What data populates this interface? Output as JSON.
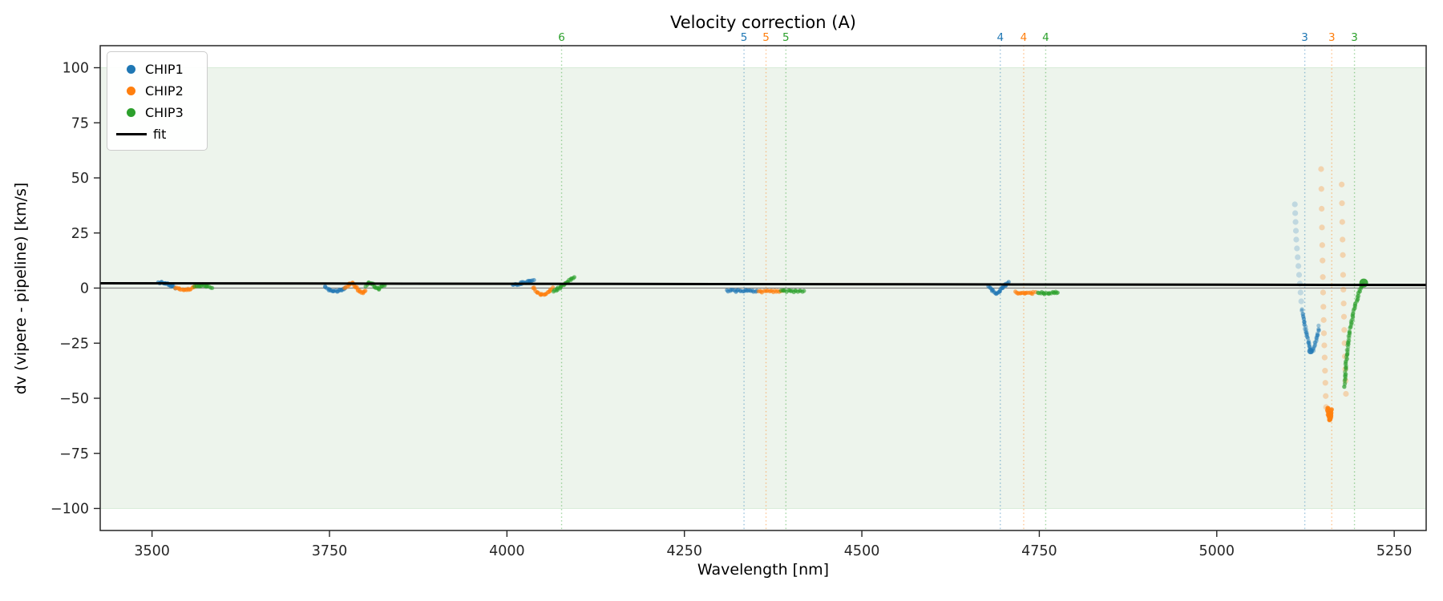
{
  "chart_data": {
    "type": "scatter",
    "title": "Velocity correction (A)",
    "xlabel": "Wavelength [nm]",
    "ylabel": "dv (vipere - pipeline) [km/s]",
    "xlim": [
      3427,
      5295
    ],
    "ylim": [
      -110,
      110
    ],
    "xticks": [
      3500,
      3750,
      4000,
      4250,
      4500,
      4750,
      5000,
      5250
    ],
    "yticks": [
      100,
      75,
      50,
      25,
      0,
      -25,
      -50,
      -75,
      -100
    ],
    "grid": false,
    "shaded_band": {
      "ymin": -100,
      "ymax": 100,
      "color": "#edf4ec",
      "edge_color": "#2ca02c"
    },
    "zero_line": {
      "y": 0,
      "color": "#848484"
    },
    "fit_line": {
      "label": "fit",
      "color": "#000000",
      "points": [
        [
          3427,
          2.2
        ],
        [
          5295,
          1.4
        ]
      ]
    },
    "order_markers": [
      {
        "order": "6",
        "chip": "CHIP3",
        "wavelength": 4077,
        "color": "#2ca02c"
      },
      {
        "order": "5",
        "chip": "CHIP1",
        "wavelength": 4334,
        "color": "#1f77b4"
      },
      {
        "order": "5",
        "chip": "CHIP2",
        "wavelength": 4365,
        "color": "#ff7f0e"
      },
      {
        "order": "5",
        "chip": "CHIP3",
        "wavelength": 4393,
        "color": "#2ca02c"
      },
      {
        "order": "4",
        "chip": "CHIP1",
        "wavelength": 4695,
        "color": "#1f77b4"
      },
      {
        "order": "4",
        "chip": "CHIP2",
        "wavelength": 4728,
        "color": "#ff7f0e"
      },
      {
        "order": "4",
        "chip": "CHIP3",
        "wavelength": 4759,
        "color": "#2ca02c"
      },
      {
        "order": "3",
        "chip": "CHIP1",
        "wavelength": 5124,
        "color": "#1f77b4"
      },
      {
        "order": "3",
        "chip": "CHIP2",
        "wavelength": 5162,
        "color": "#ff7f0e"
      },
      {
        "order": "3",
        "chip": "CHIP3",
        "wavelength": 5194,
        "color": "#2ca02c"
      }
    ],
    "series": [
      {
        "name": "CHIP1",
        "color": "#1f77b4",
        "segments": [
          {
            "mode": "dense",
            "opacity": 0.6,
            "points": [
              [
                3509,
                2.3
              ],
              [
                3514,
                2.6
              ],
              [
                3519,
                2.2
              ],
              [
                3524,
                1.5
              ],
              [
                3529,
                0.8
              ],
              [
                3533,
                0.3
              ]
            ]
          },
          {
            "mode": "dense",
            "opacity": 0.6,
            "points": [
              [
                3743,
                0.3
              ],
              [
                3749,
                -0.6
              ],
              [
                3755,
                -1.3
              ],
              [
                3761,
                -1.2
              ],
              [
                3767,
                -0.6
              ],
              [
                3772,
                0.1
              ]
            ]
          },
          {
            "mode": "dense",
            "opacity": 0.6,
            "points": [
              [
                4008,
                1.3
              ],
              [
                4014,
                1.8
              ],
              [
                4020,
                2.2
              ],
              [
                4026,
                2.6
              ],
              [
                4032,
                3.0
              ],
              [
                4038,
                3.2
              ]
            ]
          },
          {
            "mode": "dense",
            "opacity": 0.6,
            "points": [
              [
                4310,
                -1.2
              ],
              [
                4352,
                -1.3
              ]
            ]
          },
          {
            "mode": "dense",
            "opacity": 0.6,
            "points": [
              [
                4679,
                0.4
              ],
              [
                4684,
                -1.0
              ],
              [
                4689,
                -2.2
              ],
              [
                4693,
                -1.6
              ],
              [
                4698,
                0.2
              ],
              [
                4702,
                1.6
              ],
              [
                4706,
                2.9
              ]
            ]
          },
          {
            "mode": "sparse",
            "opacity": 0.22,
            "r": 3.6,
            "points": [
              [
                5110,
                38
              ],
              [
                5110.5,
                34
              ],
              [
                5111,
                30
              ],
              [
                5111.5,
                26
              ],
              [
                5112,
                22
              ],
              [
                5113,
                18
              ],
              [
                5114,
                14
              ],
              [
                5115,
                10
              ],
              [
                5116,
                6
              ],
              [
                5117,
                2
              ],
              [
                5118,
                -2
              ],
              [
                5119,
                -6
              ]
            ]
          },
          {
            "mode": "dense",
            "opacity": 0.4,
            "points": [
              [
                5120,
                -10
              ],
              [
                5123,
                -15
              ],
              [
                5126,
                -20
              ],
              [
                5129,
                -24.5
              ],
              [
                5131,
                -27
              ],
              [
                5133,
                -28.8
              ],
              [
                5136,
                -28
              ],
              [
                5139,
                -25
              ],
              [
                5142,
                -21
              ],
              [
                5144,
                -17.5
              ]
            ]
          },
          {
            "mode": "sparse",
            "opacity": 0.8,
            "r": 4,
            "points": [
              [
                5132,
                -28.6
              ]
            ]
          }
        ]
      },
      {
        "name": "CHIP2",
        "color": "#ff7f0e",
        "segments": [
          {
            "mode": "dense",
            "opacity": 0.6,
            "points": [
              [
                3533,
                0.3
              ],
              [
                3539,
                -0.5
              ],
              [
                3545,
                -0.9
              ],
              [
                3551,
                -0.5
              ],
              [
                3557,
                0.2
              ],
              [
                3561,
                0.4
              ]
            ]
          },
          {
            "mode": "dense",
            "opacity": 0.6,
            "points": [
              [
                3772,
                0.2
              ],
              [
                3777,
                1.6
              ],
              [
                3782,
                2.4
              ],
              [
                3787,
                0.6
              ],
              [
                3792,
                -1.4
              ],
              [
                3797,
                -2.1
              ],
              [
                3801,
                -1.0
              ]
            ]
          },
          {
            "mode": "dense",
            "opacity": 0.6,
            "points": [
              [
                4036,
                0.3
              ],
              [
                4042,
                -1.6
              ],
              [
                4048,
                -2.9
              ],
              [
                4054,
                -2.6
              ],
              [
                4060,
                -1.2
              ],
              [
                4065,
                -0.2
              ]
            ]
          },
          {
            "mode": "dense",
            "opacity": 0.6,
            "points": [
              [
                4354,
                -1.5
              ],
              [
                4388,
                -1.6
              ]
            ]
          },
          {
            "mode": "dense",
            "opacity": 0.6,
            "points": [
              [
                4716,
                -1.8
              ],
              [
                4723,
                -2.4
              ],
              [
                4731,
                -2.6
              ],
              [
                4738,
                -2.3
              ],
              [
                4744,
                -1.9
              ]
            ]
          },
          {
            "mode": "sparse",
            "opacity": 0.28,
            "r": 3.6,
            "points": [
              [
                5147,
                54
              ],
              [
                5147.4,
                45
              ],
              [
                5147.8,
                36
              ],
              [
                5148.2,
                27.5
              ],
              [
                5148.6,
                19.5
              ],
              [
                5149,
                12.5
              ],
              [
                5149.4,
                5
              ],
              [
                5149.8,
                -2
              ],
              [
                5150.2,
                -8.5
              ],
              [
                5150.6,
                -14.5
              ],
              [
                5151,
                -20.5
              ],
              [
                5151.5,
                -26
              ],
              [
                5152,
                -31.5
              ],
              [
                5152.5,
                -37.5
              ],
              [
                5153,
                -43
              ],
              [
                5153.5,
                -49
              ],
              [
                5154,
                -54
              ]
            ]
          },
          {
            "mode": "sparse",
            "opacity": 0.28,
            "r": 3.6,
            "points": [
              [
                5176,
                47
              ],
              [
                5176.4,
                38.5
              ],
              [
                5176.8,
                30
              ],
              [
                5177.2,
                22
              ],
              [
                5177.6,
                15
              ],
              [
                5178,
                6
              ],
              [
                5178.4,
                -0.7
              ],
              [
                5178.8,
                -7
              ],
              [
                5179.2,
                -13
              ],
              [
                5179.6,
                -19
              ],
              [
                5180,
                -25
              ],
              [
                5180.5,
                -31
              ],
              [
                5181,
                -36.8
              ],
              [
                5181.5,
                -42
              ],
              [
                5182,
                -48
              ]
            ]
          },
          {
            "mode": "dense",
            "opacity": 0.8,
            "r": 2.8,
            "points": [
              [
                5156,
                -54
              ],
              [
                5157.5,
                -57.5
              ],
              [
                5159,
                -60
              ],
              [
                5160.5,
                -58
              ],
              [
                5162,
                -55
              ]
            ]
          }
        ]
      },
      {
        "name": "CHIP3",
        "color": "#2ca02c",
        "segments": [
          {
            "mode": "dense",
            "opacity": 0.6,
            "points": [
              [
                3560,
                0.9
              ],
              [
                3566,
                1.3
              ],
              [
                3572,
                1.4
              ],
              [
                3578,
                0.9
              ],
              [
                3584,
                0.5
              ]
            ]
          },
          {
            "mode": "dense",
            "opacity": 0.6,
            "points": [
              [
                3801,
                1.0
              ],
              [
                3806,
                2.4
              ],
              [
                3811,
                1.6
              ],
              [
                3816,
                0.1
              ],
              [
                3820,
                -0.4
              ],
              [
                3824,
                0.6
              ],
              [
                3828,
                1.6
              ]
            ]
          },
          {
            "mode": "dense",
            "opacity": 0.6,
            "points": [
              [
                4066,
                -1.2
              ],
              [
                4071,
                -0.6
              ],
              [
                4076,
                0.6
              ],
              [
                4081,
                1.8
              ],
              [
                4086,
                3.0
              ],
              [
                4091,
                4.4
              ],
              [
                4095,
                5.4
              ]
            ]
          },
          {
            "mode": "dense",
            "opacity": 0.6,
            "points": [
              [
                4386,
                -1.4
              ],
              [
                4418,
                -1.5
              ]
            ]
          },
          {
            "mode": "dense",
            "opacity": 0.6,
            "points": [
              [
                4748,
                -1.9
              ],
              [
                4756,
                -2.3
              ],
              [
                4764,
                -2.4
              ],
              [
                4771,
                -2.1
              ],
              [
                4776,
                -1.8
              ]
            ]
          },
          {
            "mode": "dense",
            "opacity": 0.45,
            "points": [
              [
                5180,
                -45
              ],
              [
                5181,
                -40
              ],
              [
                5182,
                -35
              ],
              [
                5183.5,
                -30
              ],
              [
                5185,
                -25
              ],
              [
                5187,
                -20.5
              ],
              [
                5189.5,
                -16
              ],
              [
                5192,
                -12
              ],
              [
                5195,
                -8
              ],
              [
                5198,
                -4.5
              ],
              [
                5201,
                -1.5
              ],
              [
                5204,
                0.8
              ],
              [
                5206,
                2.0
              ]
            ]
          },
          {
            "mode": "sparse",
            "opacity": 0.9,
            "r": 5.5,
            "points": [
              [
                5207,
                2.3
              ]
            ]
          }
        ]
      }
    ],
    "legend": {
      "position": "upper-left",
      "items": [
        {
          "label": "CHIP1",
          "color": "#1f77b4",
          "marker": "dot"
        },
        {
          "label": "CHIP2",
          "color": "#ff7f0e",
          "marker": "dot"
        },
        {
          "label": "CHIP3",
          "color": "#2ca02c",
          "marker": "dot"
        },
        {
          "label": "fit",
          "color": "#000000",
          "marker": "line"
        }
      ]
    }
  }
}
